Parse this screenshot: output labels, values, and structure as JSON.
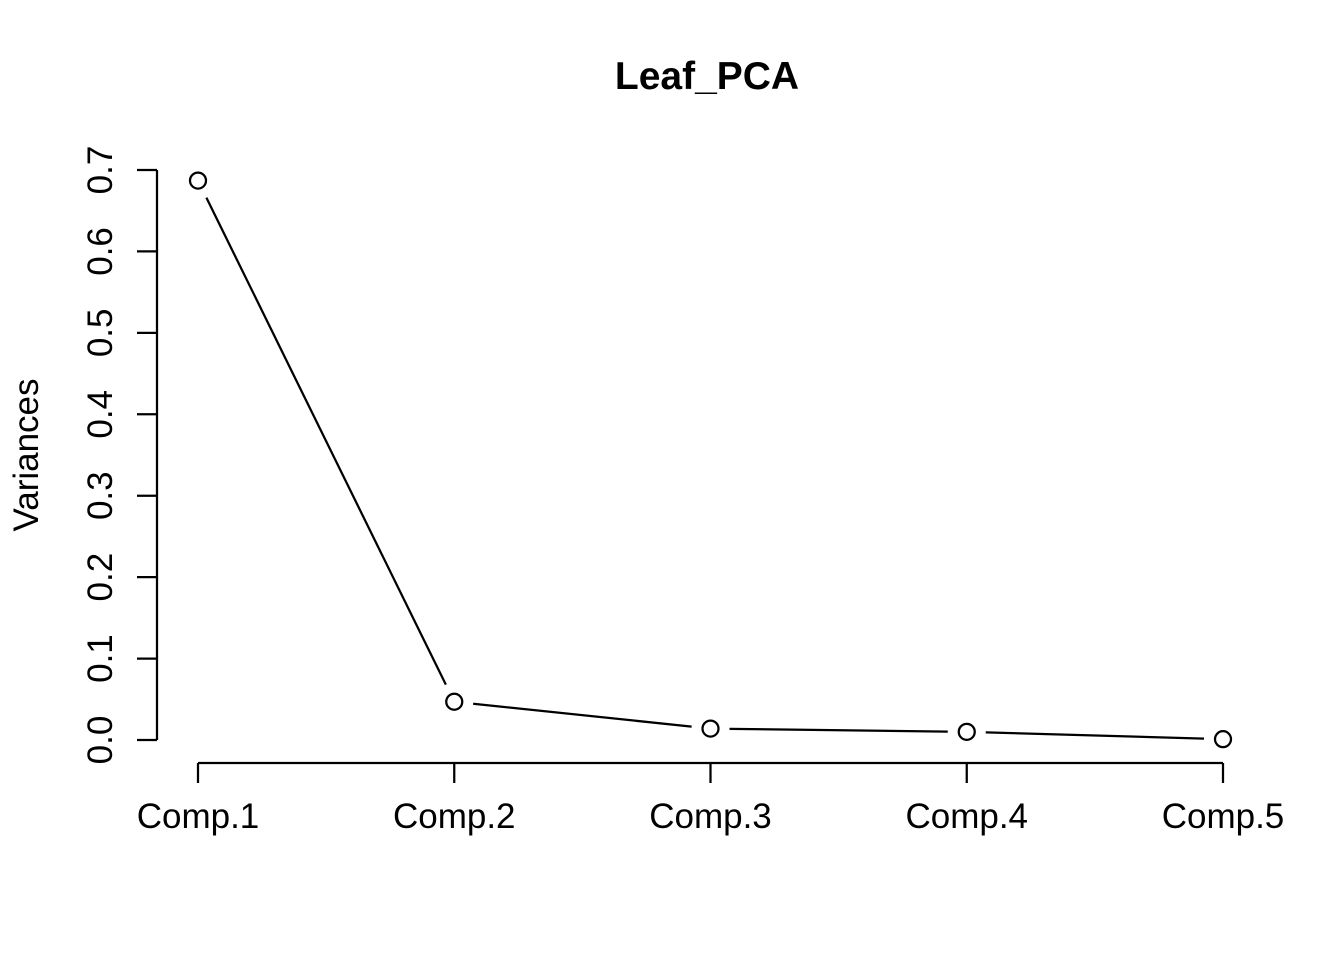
{
  "chart_data": {
    "type": "line",
    "style": "r-base-screeplot-type-b",
    "title": "Leaf_PCA",
    "ylabel": "Variances",
    "xlabel": "",
    "categories": [
      "Comp.1",
      "Comp.2",
      "Comp.3",
      "Comp.4",
      "Comp.5"
    ],
    "values": [
      0.687,
      0.047,
      0.014,
      0.01,
      0.001
    ],
    "ylim": [
      0.0,
      0.7
    ],
    "y_ticks": [
      0.0,
      0.1,
      0.2,
      0.3,
      0.4,
      0.5,
      0.6,
      0.7
    ],
    "y_tick_labels": [
      "0.0",
      "0.1",
      "0.2",
      "0.3",
      "0.4",
      "0.5",
      "0.6",
      "0.7"
    ],
    "marker": "open-circle",
    "grid": false,
    "legend": null,
    "colors": {
      "foreground": "#000000",
      "background": "#ffffff"
    }
  }
}
